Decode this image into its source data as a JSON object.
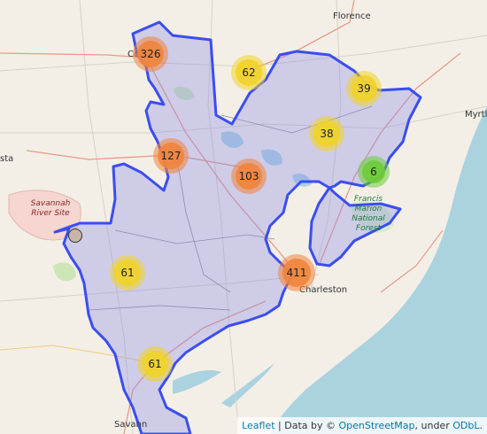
{
  "places": [
    {
      "label": "Florence"
    },
    {
      "label": "Col"
    },
    {
      "label": "Myrtl"
    },
    {
      "label": "sta"
    },
    {
      "label": "Savannah River Site"
    },
    {
      "label": "Francis Marion National Forest"
    },
    {
      "label": "Charleston"
    },
    {
      "label": "Savann"
    }
  ],
  "clusters": [
    {
      "count": "326",
      "level": "large",
      "color": "#f0843c"
    },
    {
      "count": "62",
      "level": "medium",
      "color": "#f1d32a"
    },
    {
      "count": "39",
      "level": "medium",
      "color": "#f1d32a"
    },
    {
      "count": "38",
      "level": "medium",
      "color": "#f1d32a"
    },
    {
      "count": "127",
      "level": "large",
      "color": "#f0843c"
    },
    {
      "count": "103",
      "level": "large",
      "color": "#f0843c"
    },
    {
      "count": "6",
      "level": "small",
      "color": "#6ecc39"
    },
    {
      "count": "61",
      "level": "medium",
      "color": "#f1d32a"
    },
    {
      "count": "411",
      "level": "large",
      "color": "#f0843c"
    },
    {
      "count": "61",
      "level": "medium",
      "color": "#f1d32a"
    }
  ],
  "attribution": {
    "leaflet": "Leaflet",
    "sep1": " | Data by © ",
    "osm": "OpenStreetMap",
    "sep2": ", under ",
    "odbl": "ODbL",
    "end": "."
  },
  "colors": {
    "region_fill": "#8c8ce8",
    "region_stroke": "#3a4ef0",
    "water": "#aad3df",
    "land": "#f3efe6"
  }
}
